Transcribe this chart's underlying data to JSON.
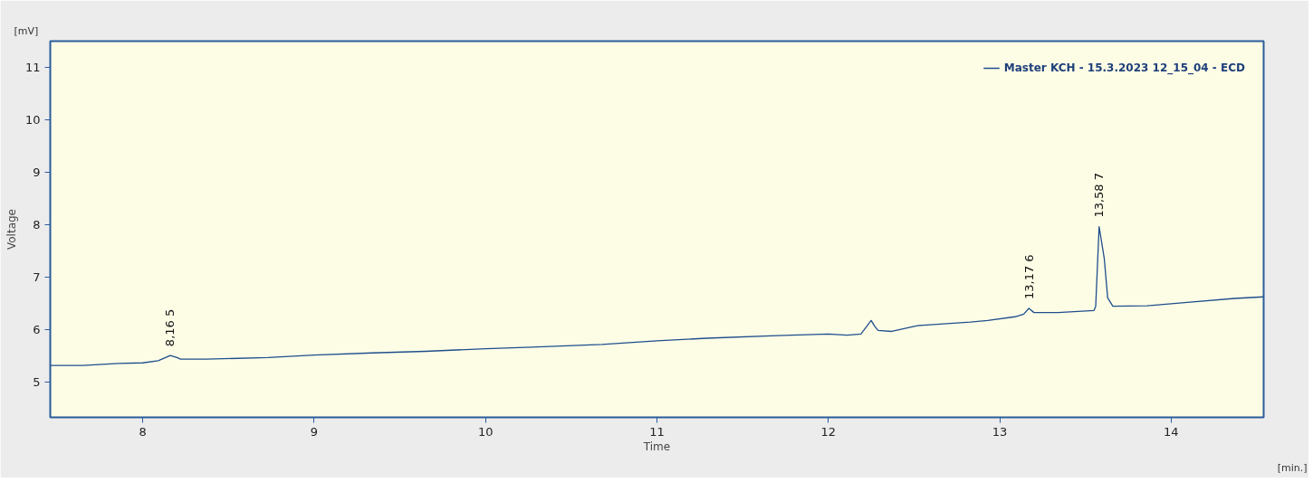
{
  "chart_data": {
    "type": "line",
    "xlabel": "Time",
    "ylabel": "Voltage",
    "x": [
      7.46,
      7.65,
      7.86,
      8.0,
      8.09,
      8.16,
      8.2,
      8.22,
      8.37,
      8.73,
      9.0,
      9.34,
      9.65,
      10.0,
      10.27,
      10.68,
      11.0,
      11.29,
      11.7,
      12.0,
      12.11,
      12.19,
      12.25,
      12.27,
      12.29,
      12.37,
      12.52,
      12.83,
      12.93,
      13.09,
      13.14,
      13.17,
      13.2,
      13.34,
      13.55,
      13.56,
      13.58,
      13.61,
      13.63,
      13.66,
      13.86,
      14.11,
      14.37,
      14.54
    ],
    "series": [
      {
        "name": "Master KCH - 15.3.2023 12_15_04 - ECD",
        "color": "#1f4e8c",
        "values": [
          5.31,
          5.31,
          5.35,
          5.36,
          5.4,
          5.5,
          5.46,
          5.43,
          5.43,
          5.46,
          5.51,
          5.55,
          5.58,
          5.63,
          5.66,
          5.71,
          5.78,
          5.83,
          5.88,
          5.91,
          5.89,
          5.91,
          6.17,
          6.06,
          5.98,
          5.96,
          6.07,
          6.14,
          6.17,
          6.24,
          6.29,
          6.4,
          6.32,
          6.32,
          6.36,
          6.44,
          7.96,
          7.35,
          6.6,
          6.44,
          6.45,
          6.52,
          6.59,
          6.62
        ]
      }
    ],
    "xlim": [
      7.46,
      14.54
    ],
    "ylim": [
      4.32,
      11.5
    ],
    "xticks": [
      8,
      9,
      10,
      11,
      12,
      13,
      14
    ],
    "yticks": [
      5,
      6,
      7,
      8,
      9,
      10,
      11
    ],
    "grid": false,
    "legend": "top right",
    "marker": "none",
    "line_style": "solid",
    "annotations": [
      "[mV]",
      "[min.]",
      {
        "text": "8,16   5",
        "x": 8.16,
        "y": 5.5
      },
      {
        "text": "13,17   6",
        "x": 13.17,
        "y": 6.4
      },
      {
        "text": "13,58   7",
        "x": 13.58,
        "y": 7.96
      }
    ]
  }
}
